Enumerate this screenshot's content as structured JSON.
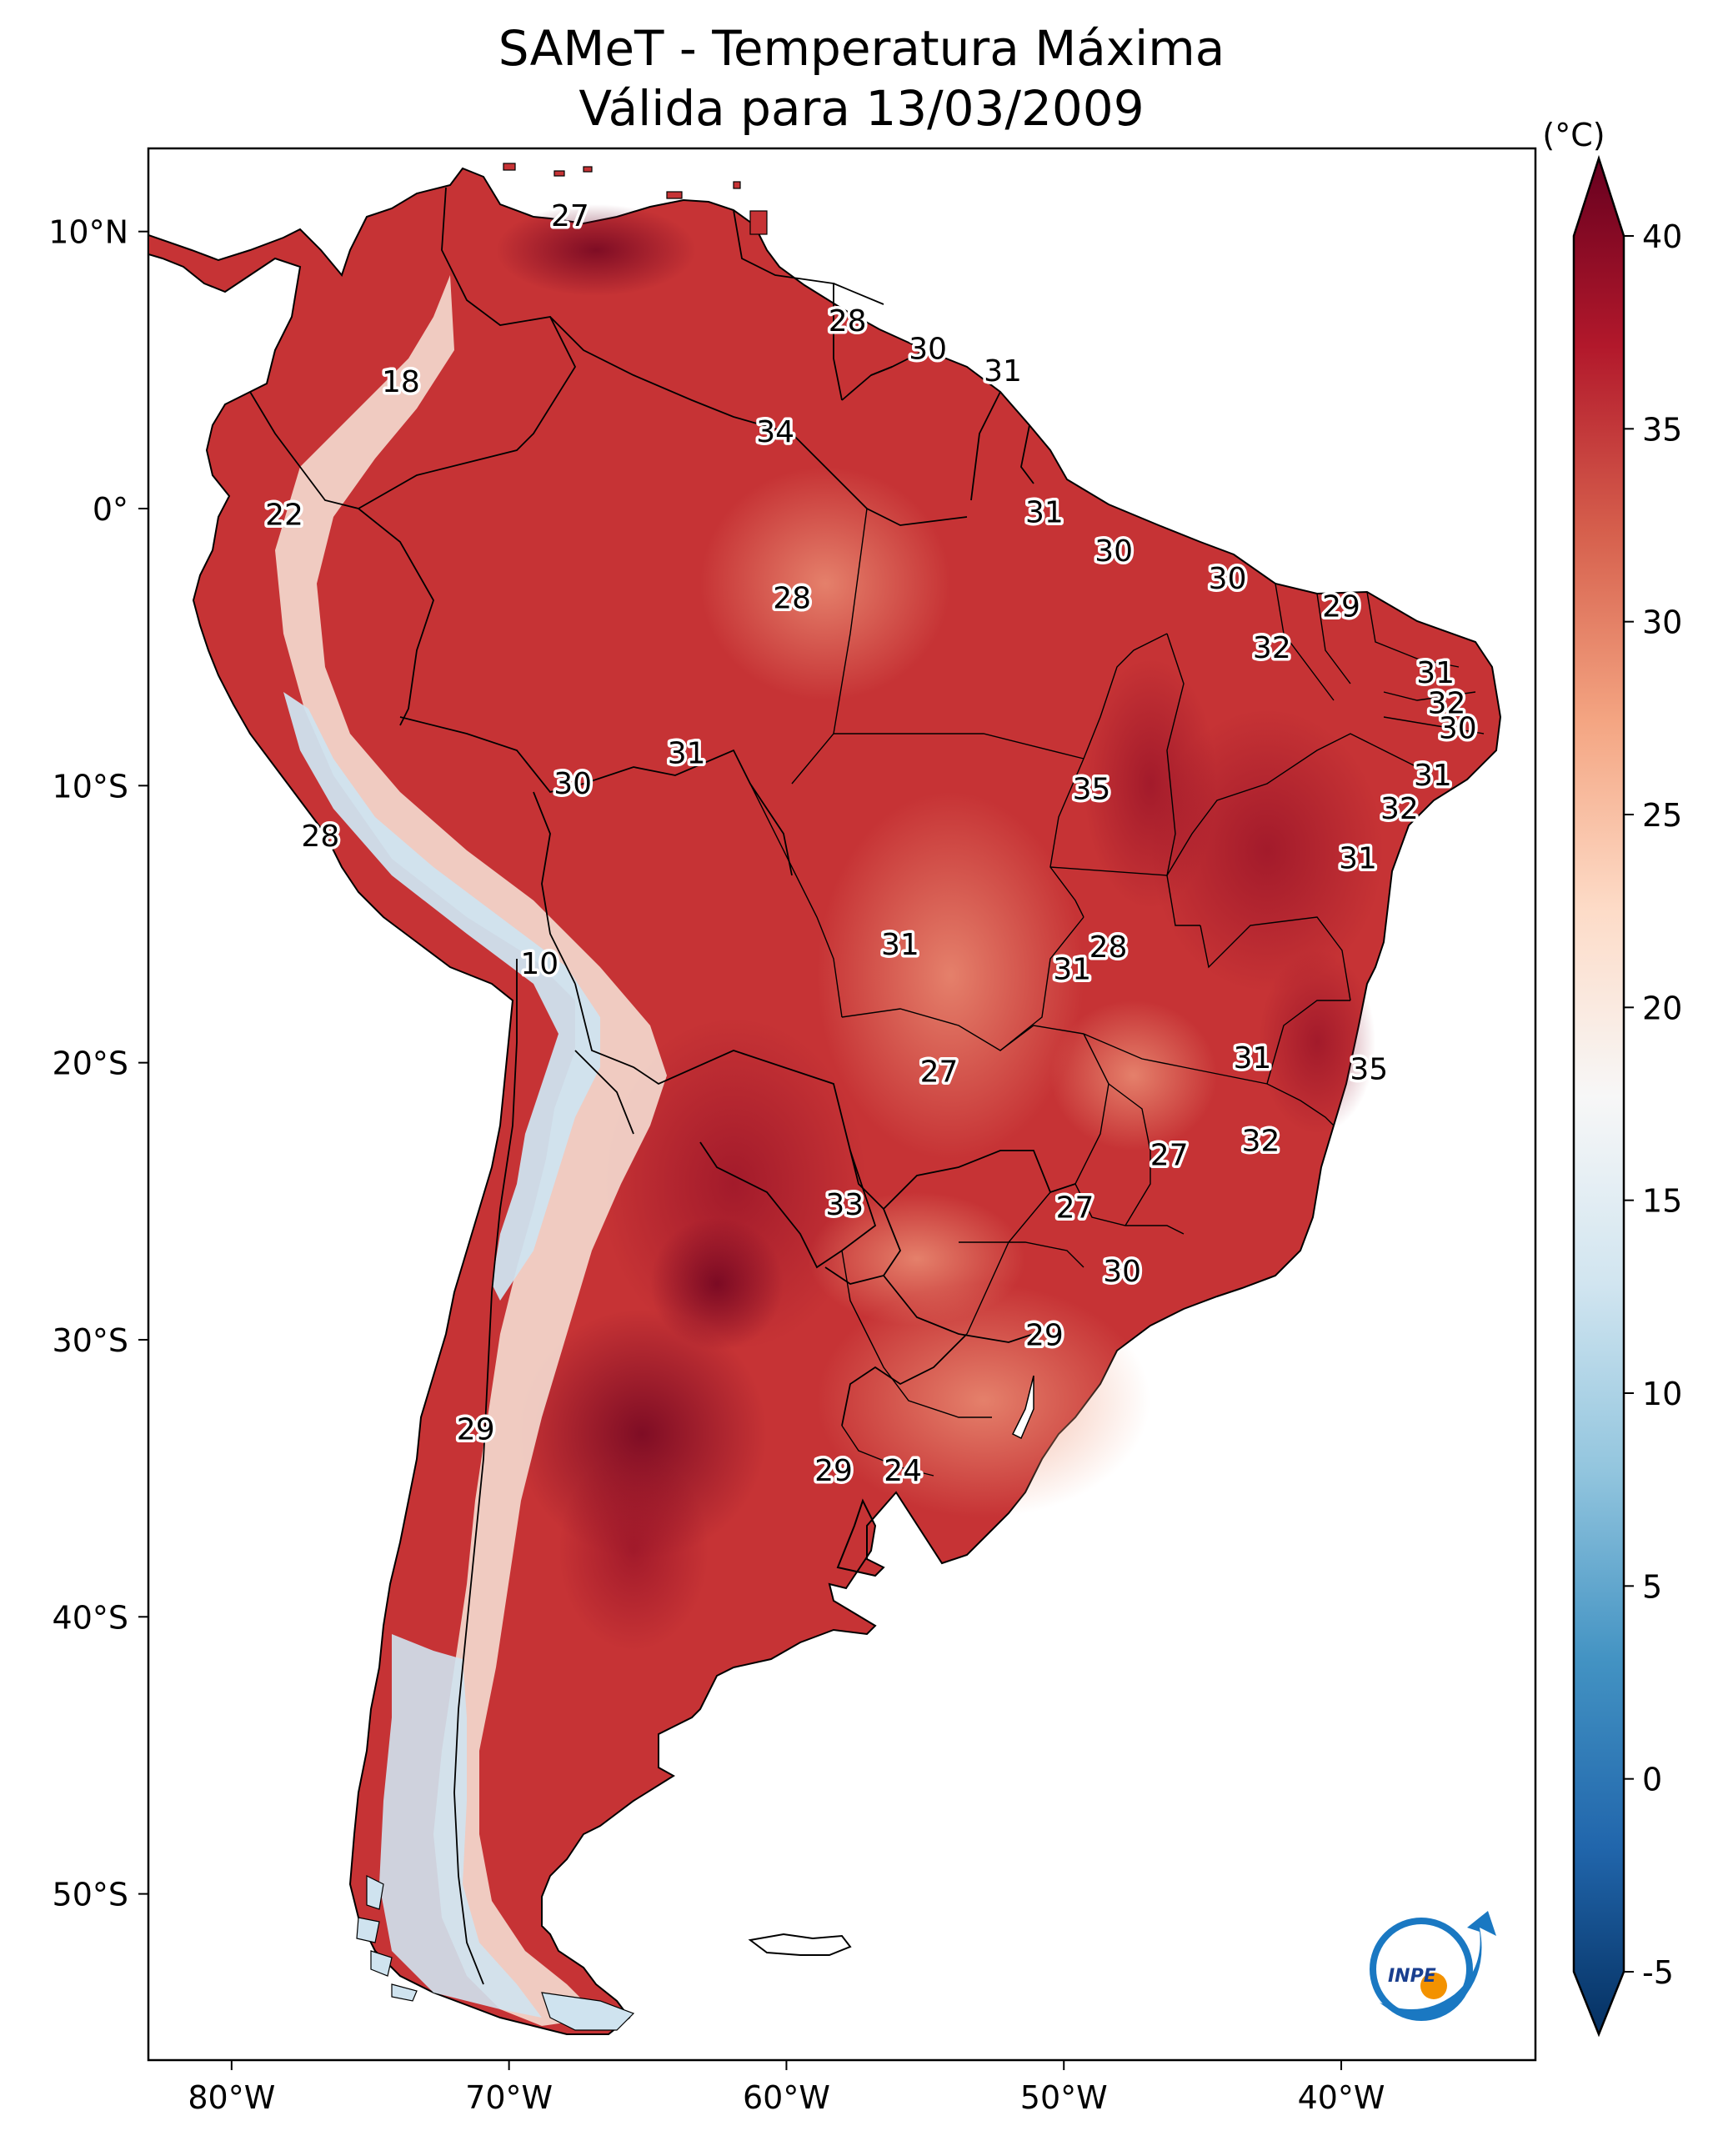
{
  "title": {
    "line1": "SAMeT - Temperatura Máxima",
    "line2": "Válida para 13/03/2009"
  },
  "map": {
    "lon_range": [
      -83,
      -33
    ],
    "lat_range": [
      -56,
      13
    ],
    "lon_ticks": [
      {
        "value": -80,
        "label": "80°W"
      },
      {
        "value": -70,
        "label": "70°W"
      },
      {
        "value": -60,
        "label": "60°W"
      },
      {
        "value": -50,
        "label": "50°W"
      },
      {
        "value": -40,
        "label": "40°W"
      }
    ],
    "lat_ticks": [
      {
        "value": 10,
        "label": "10°N"
      },
      {
        "value": 0,
        "label": "0°"
      },
      {
        "value": -10,
        "label": "10°S"
      },
      {
        "value": -20,
        "label": "20°S"
      },
      {
        "value": -30,
        "label": "30°S"
      },
      {
        "value": -40,
        "label": "40°S"
      },
      {
        "value": -50,
        "label": "50°S"
      }
    ],
    "contour_labels": [
      {
        "lon": -67.8,
        "lat": 10.6,
        "text": "27"
      },
      {
        "lon": -57.8,
        "lat": 6.8,
        "text": "28"
      },
      {
        "lon": -54.9,
        "lat": 5.8,
        "text": "30"
      },
      {
        "lon": -52.2,
        "lat": 5.0,
        "text": "31"
      },
      {
        "lon": -73.9,
        "lat": 4.6,
        "text": "18"
      },
      {
        "lon": -60.4,
        "lat": 2.8,
        "text": "34"
      },
      {
        "lon": -78.1,
        "lat": -0.2,
        "text": "22"
      },
      {
        "lon": -50.7,
        "lat": -0.1,
        "text": "31"
      },
      {
        "lon": -48.2,
        "lat": -1.5,
        "text": "30"
      },
      {
        "lon": -44.1,
        "lat": -2.5,
        "text": "30"
      },
      {
        "lon": -59.8,
        "lat": -3.2,
        "text": "28"
      },
      {
        "lon": -40.0,
        "lat": -3.5,
        "text": "29"
      },
      {
        "lon": -42.5,
        "lat": -5.0,
        "text": "32"
      },
      {
        "lon": -36.6,
        "lat": -5.9,
        "text": "31"
      },
      {
        "lon": -36.2,
        "lat": -7.0,
        "text": "32"
      },
      {
        "lon": -35.8,
        "lat": -7.9,
        "text": "30"
      },
      {
        "lon": -63.6,
        "lat": -8.8,
        "text": "31"
      },
      {
        "lon": -67.7,
        "lat": -9.9,
        "text": "30"
      },
      {
        "lon": -36.7,
        "lat": -9.6,
        "text": "31"
      },
      {
        "lon": -49.0,
        "lat": -10.1,
        "text": "35"
      },
      {
        "lon": -37.9,
        "lat": -10.8,
        "text": "32"
      },
      {
        "lon": -76.8,
        "lat": -11.8,
        "text": "28"
      },
      {
        "lon": -39.4,
        "lat": -12.6,
        "text": "31"
      },
      {
        "lon": -48.4,
        "lat": -15.8,
        "text": "28"
      },
      {
        "lon": -55.9,
        "lat": -15.7,
        "text": "31"
      },
      {
        "lon": -49.7,
        "lat": -16.6,
        "text": "31"
      },
      {
        "lon": -68.9,
        "lat": -16.4,
        "text": "10"
      },
      {
        "lon": -43.2,
        "lat": -19.8,
        "text": "31"
      },
      {
        "lon": -54.5,
        "lat": -20.3,
        "text": "27"
      },
      {
        "lon": -39.0,
        "lat": -20.2,
        "text": "35"
      },
      {
        "lon": -42.9,
        "lat": -22.8,
        "text": "32"
      },
      {
        "lon": -46.2,
        "lat": -23.3,
        "text": "27"
      },
      {
        "lon": -57.9,
        "lat": -25.1,
        "text": "33"
      },
      {
        "lon": -49.6,
        "lat": -25.2,
        "text": "27"
      },
      {
        "lon": -47.9,
        "lat": -27.5,
        "text": "30"
      },
      {
        "lon": -50.7,
        "lat": -29.8,
        "text": "29"
      },
      {
        "lon": -71.2,
        "lat": -33.2,
        "text": "29"
      },
      {
        "lon": -58.3,
        "lat": -34.7,
        "text": "29"
      },
      {
        "lon": -55.8,
        "lat": -34.7,
        "text": "24"
      }
    ]
  },
  "colorbar": {
    "unit": "(°C)",
    "range": [
      -5,
      40
    ],
    "ticks": [
      {
        "value": 40,
        "label": "40"
      },
      {
        "value": 35,
        "label": "35"
      },
      {
        "value": 30,
        "label": "30"
      },
      {
        "value": 25,
        "label": "25"
      },
      {
        "value": 20,
        "label": "20"
      },
      {
        "value": 15,
        "label": "15"
      },
      {
        "value": 10,
        "label": "10"
      },
      {
        "value": 5,
        "label": "5"
      },
      {
        "value": 0,
        "label": "0"
      },
      {
        "value": -5,
        "label": "-5"
      }
    ],
    "colors": [
      "#053061",
      "#2166ac",
      "#4393c3",
      "#92c5de",
      "#d1e5f0",
      "#f7f7f7",
      "#fddbc7",
      "#f4a582",
      "#d6604d",
      "#b2182b",
      "#67001f"
    ]
  },
  "logo": {
    "text": "INPE",
    "ring_color": "#1a78c2",
    "dot_color": "#f39200"
  }
}
